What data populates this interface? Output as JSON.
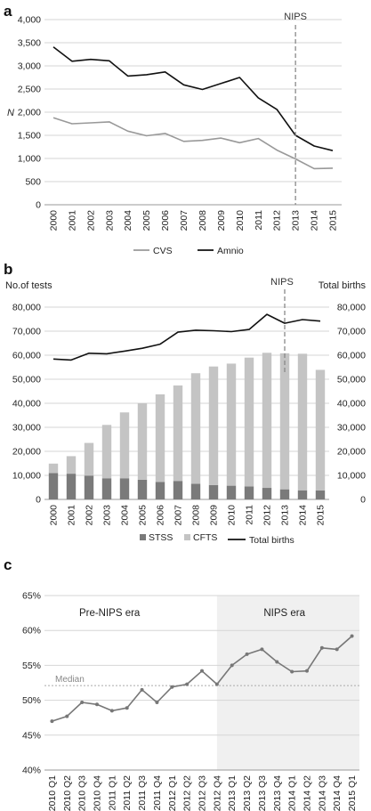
{
  "panels": [
    {
      "id": "a",
      "label": "a",
      "chart_data": {
        "type": "line",
        "ylabel": "N",
        "ylim": [
          0,
          4000
        ],
        "yticks": [
          0,
          500,
          1000,
          1500,
          2000,
          2500,
          3000,
          3500,
          4000
        ],
        "ytick_labels": [
          "0",
          "500",
          "1,000",
          "1,500",
          "2,000",
          "2,500",
          "3,000",
          "3,500",
          "4,000"
        ],
        "categories": [
          "2000",
          "2001",
          "2002",
          "2003",
          "2004",
          "2005",
          "2006",
          "2007",
          "2008",
          "2009",
          "2010",
          "2011",
          "2012",
          "2013",
          "2014",
          "2015"
        ],
        "series": [
          {
            "name": "CVS",
            "color": "#999999",
            "values": [
              1880,
              1750,
              1770,
              1790,
              1590,
              1490,
              1540,
              1370,
              1390,
              1440,
              1340,
              1430,
              1180,
              990,
              780,
              790
            ]
          },
          {
            "name": "Amnio",
            "color": "#111111",
            "values": [
              3410,
              3100,
              3140,
              3110,
              2780,
              2810,
              2870,
              2590,
              2490,
              2620,
              2750,
              2310,
              2060,
              1500,
              1270,
              1170
            ]
          }
        ],
        "annotation": {
          "label": "NIPS",
          "at_category": "2013"
        },
        "grid": true,
        "legend": "bottom"
      }
    },
    {
      "id": "b",
      "label": "b",
      "chart_data": {
        "type": "bar",
        "stacked": true,
        "ylabel_left": "No.of tests",
        "ylabel_right": "Total births",
        "ylim": [
          0,
          80000
        ],
        "yticks": [
          0,
          10000,
          20000,
          30000,
          40000,
          50000,
          60000,
          70000,
          80000
        ],
        "ytick_labels": [
          "0",
          "10,000",
          "20,000",
          "30,000",
          "40,000",
          "50,000",
          "60,000",
          "70,000",
          "80,000"
        ],
        "categories": [
          "2000",
          "2001",
          "2002",
          "2003",
          "2004",
          "2005",
          "2006",
          "2007",
          "2008",
          "2009",
          "2010",
          "2011",
          "2012",
          "2013",
          "2014",
          "2015"
        ],
        "series": [
          {
            "name": "STSS",
            "kind": "bar",
            "color": "#7a7a7a",
            "values": [
              11000,
              10700,
              9900,
              8800,
              8800,
              8200,
              7300,
              7700,
              6500,
              6000,
              5700,
              5400,
              4800,
              4200,
              3800,
              3700
            ]
          },
          {
            "name": "CFTS",
            "kind": "bar",
            "color": "#c4c4c4",
            "values": [
              3900,
              7300,
              13600,
              22200,
              27400,
              31800,
              36400,
              39700,
              46000,
              49300,
              50800,
              53600,
              56200,
              56600,
              56800,
              50200
            ]
          },
          {
            "name": "Total births",
            "kind": "line",
            "color": "#111111",
            "values": [
              58400,
              58000,
              60800,
              60600,
              61700,
              62900,
              64600,
              69600,
              70400,
              70200,
              69800,
              70700,
              77000,
              73300,
              74800,
              74200
            ]
          }
        ],
        "annotation": {
          "label": "NIPS",
          "at_category": "2013"
        },
        "grid": true,
        "legend": "bottom"
      }
    },
    {
      "id": "c",
      "label": "c",
      "chart_data": {
        "type": "line",
        "ylim": [
          40,
          65
        ],
        "yticks": [
          40,
          45,
          50,
          55,
          60,
          65
        ],
        "ytick_labels": [
          "40%",
          "45%",
          "50%",
          "55%",
          "60%",
          "65%"
        ],
        "categories": [
          "2010 Q1",
          "2010 Q2",
          "2010 Q3",
          "2010 Q4",
          "2011 Q1",
          "2011 Q2",
          "2011 Q3",
          "2011 Q4",
          "2012 Q1",
          "2012 Q2",
          "2012 Q3",
          "2012 Q4",
          "2013 Q1",
          "2013 Q2",
          "2013 Q3",
          "2013 Q4",
          "2014 Q1",
          "2014 Q2",
          "2014 Q3",
          "2014 Q4",
          "2015 Q1"
        ],
        "series": [
          {
            "color": "#777777",
            "values": [
              47.0,
              47.7,
              49.7,
              49.4,
              48.5,
              48.9,
              51.5,
              49.7,
              51.9,
              52.3,
              54.2,
              52.3,
              55.0,
              56.6,
              57.3,
              55.5,
              54.1,
              54.2,
              57.5,
              57.3,
              59.2
            ]
          }
        ],
        "median": {
          "label": "Median",
          "value": 52.1
        },
        "regions": [
          {
            "label": "Pre-NIPS era",
            "from": "2010 Q1",
            "to": "2012 Q4"
          },
          {
            "label": "NIPS era",
            "from": "2012 Q4",
            "to": "2015 Q1",
            "shade": "#f0f0f0"
          }
        ],
        "grid": true
      }
    }
  ]
}
